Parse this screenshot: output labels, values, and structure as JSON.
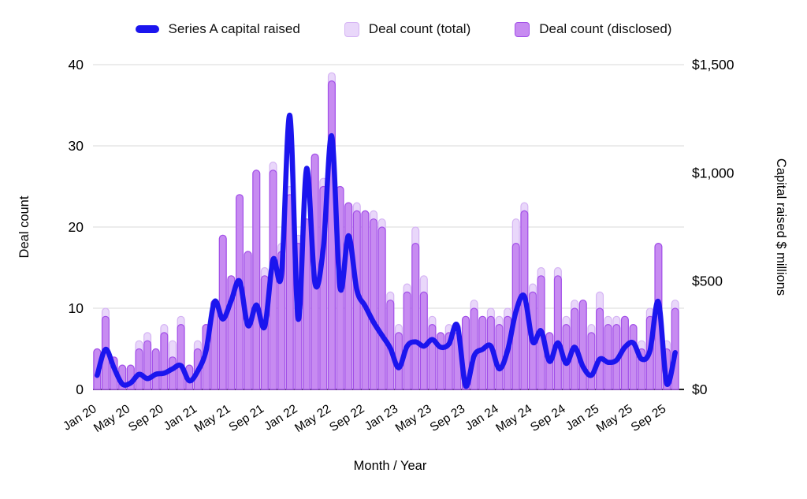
{
  "legend": {
    "line_label": "Series A capital raised",
    "total_label": "Deal count (total)",
    "disclosed_label": "Deal count (disclosed)"
  },
  "colors": {
    "line_blue": "#1b15ee",
    "bar_total_fill": "#e9d7fa",
    "bar_total_stroke": "#d5b4f4",
    "bar_disclosed_fill": "#c78bf1",
    "bar_disclosed_stroke": "#a24fe8",
    "grid": "#d9d9d9",
    "baseline": "#212121",
    "text": "#000000"
  },
  "axes": {
    "left": {
      "title": "Deal count",
      "ticks": [
        0,
        10,
        20,
        30,
        40
      ],
      "range": [
        0,
        40
      ]
    },
    "right": {
      "title": "Capital raised $ millions",
      "tick_labels": [
        "$0",
        "$500",
        "$1,000",
        "$1,500"
      ],
      "tick_values": [
        0,
        500,
        1000,
        1500
      ],
      "range": [
        0,
        1500
      ]
    },
    "x": {
      "title": "Month / Year",
      "tick_step": 4
    }
  },
  "chart_data": {
    "type": "combo",
    "title": "",
    "xlabel": "Month / Year",
    "ylabel_left": "Deal count",
    "ylabel_right": "Capital raised $ millions",
    "ylim_left": [
      0,
      40
    ],
    "ylim_right": [
      0,
      1500
    ],
    "grid": true,
    "legend_position": "top",
    "categories": [
      "Jan 20",
      "Feb 20",
      "Mar 20",
      "Apr 20",
      "May 20",
      "Jun 20",
      "Jul 20",
      "Aug 20",
      "Sep 20",
      "Oct 20",
      "Nov 20",
      "Dec 20",
      "Jan 21",
      "Feb 21",
      "Mar 21",
      "Apr 21",
      "May 21",
      "Jun 21",
      "Jul 21",
      "Aug 21",
      "Sep 21",
      "Oct 21",
      "Nov 21",
      "Dec 21",
      "Jan 22",
      "Feb 22",
      "Mar 22",
      "Apr 22",
      "May 22",
      "Jun 22",
      "Jul 22",
      "Aug 22",
      "Sep 22",
      "Oct 22",
      "Nov 22",
      "Dec 22",
      "Jan 23",
      "Feb 23",
      "Mar 23",
      "Apr 23",
      "May 23",
      "Jun 23",
      "Jul 23",
      "Aug 23",
      "Sep 23",
      "Oct 23",
      "Nov 23",
      "Dec 23",
      "Jan 24",
      "Feb 24",
      "Mar 24",
      "Apr 24",
      "May 24",
      "Jun 24",
      "Jul 24",
      "Aug 24",
      "Sep 24",
      "Oct 24",
      "Nov 24",
      "Dec 24",
      "Jan 25",
      "Feb 25",
      "Mar 25",
      "Apr 25",
      "May 25",
      "Jun 25",
      "Jul 25",
      "Aug 25",
      "Sep 25",
      "Oct 25"
    ],
    "series": [
      {
        "name": "Deal count (total)",
        "type": "bar",
        "axis": "left",
        "values": [
          5,
          10,
          4,
          3,
          3,
          6,
          7,
          5,
          8,
          6,
          9,
          3,
          6,
          8,
          11,
          19,
          14,
          24,
          17,
          27,
          15,
          28,
          18,
          25,
          19,
          21,
          29,
          26,
          39,
          25,
          23,
          23,
          22,
          22,
          21,
          12,
          8,
          13,
          20,
          14,
          9,
          7,
          8,
          8,
          9,
          11,
          9,
          10,
          9,
          10,
          21,
          23,
          13,
          15,
          7,
          15,
          9,
          11,
          11,
          8,
          12,
          9,
          9,
          9,
          8,
          6,
          10,
          18,
          6,
          11
        ]
      },
      {
        "name": "Deal count (disclosed)",
        "type": "bar",
        "axis": "left",
        "values": [
          5,
          9,
          4,
          3,
          3,
          5,
          6,
          5,
          7,
          4,
          8,
          3,
          5,
          8,
          11,
          19,
          14,
          24,
          17,
          27,
          14,
          27,
          17,
          24,
          18,
          21,
          29,
          25,
          38,
          25,
          23,
          22,
          22,
          21,
          20,
          11,
          7,
          12,
          18,
          12,
          8,
          7,
          7,
          7,
          9,
          10,
          9,
          9,
          8,
          9,
          18,
          22,
          12,
          14,
          7,
          14,
          8,
          10,
          11,
          7,
          10,
          8,
          8,
          9,
          8,
          5,
          9,
          18,
          5,
          10
        ]
      },
      {
        "name": "Series A capital raised",
        "type": "line",
        "axis": "right",
        "values": [
          65,
          185,
          100,
          25,
          30,
          70,
          50,
          70,
          75,
          95,
          110,
          40,
          85,
          180,
          405,
          325,
          410,
          500,
          295,
          390,
          290,
          600,
          530,
          1265,
          325,
          1020,
          490,
          655,
          1170,
          470,
          710,
          460,
          385,
          310,
          250,
          190,
          100,
          200,
          220,
          200,
          230,
          195,
          210,
          295,
          15,
          155,
          185,
          200,
          95,
          180,
          360,
          430,
          220,
          270,
          130,
          215,
          120,
          195,
          105,
          65,
          140,
          125,
          135,
          195,
          215,
          140,
          180,
          405,
          25,
          170
        ]
      }
    ]
  }
}
